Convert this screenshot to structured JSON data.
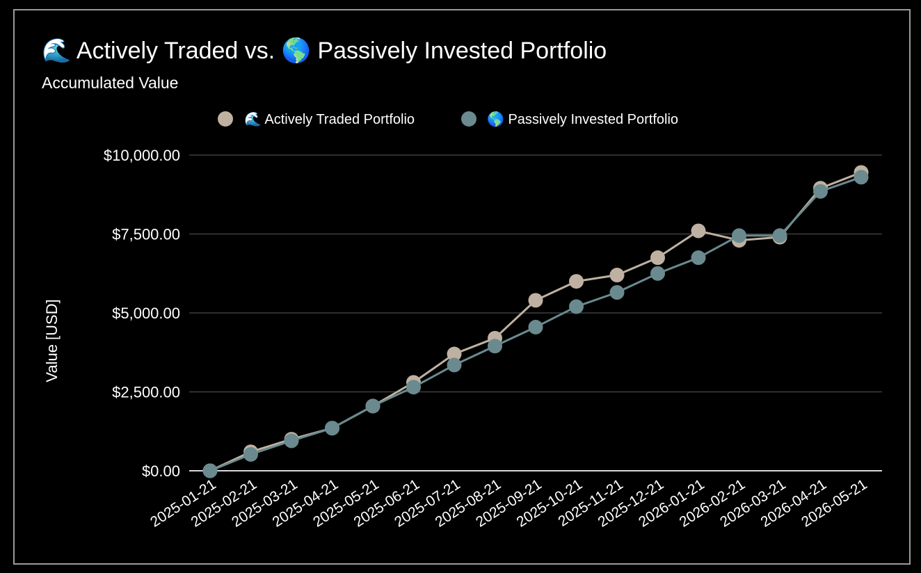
{
  "chart_data": {
    "type": "line",
    "title": "🌊 Actively Traded vs. 🌎 Passively Invested Portfolio",
    "subtitle": "Accumulated Value",
    "ylabel": "Value [USD]",
    "xlabel": "",
    "ylim": [
      0,
      10000
    ],
    "yticks": [
      0,
      2500,
      5000,
      7500,
      10000
    ],
    "ytick_labels": [
      "$0.00",
      "$2,500.00",
      "$5,000.00",
      "$7,500.00",
      "$10,000.00"
    ],
    "grid": true,
    "legend_position": "top-center",
    "categories": [
      "2025-01-21",
      "2025-02-21",
      "2025-03-21",
      "2025-04-21",
      "2025-05-21",
      "2025-06-21",
      "2025-07-21",
      "2025-08-21",
      "2025-09-21",
      "2025-10-21",
      "2025-11-21",
      "2025-12-21",
      "2026-01-21",
      "2026-02-21",
      "2026-03-21",
      "2026-04-21",
      "2026-05-21"
    ],
    "series": [
      {
        "name": "🌊 Actively Traded Portfolio",
        "color": "#bfb1a1",
        "values": [
          0,
          600,
          1000,
          1350,
          2050,
          2800,
          3700,
          4200,
          5400,
          6000,
          6200,
          6750,
          7600,
          7300,
          7400,
          8950,
          9450
        ]
      },
      {
        "name": "🌎 Passively Invested Portfolio",
        "color": "#6a8a8f",
        "values": [
          0,
          520,
          950,
          1350,
          2050,
          2650,
          3350,
          3950,
          4550,
          5200,
          5650,
          6250,
          6750,
          7450,
          7450,
          8850,
          9300
        ]
      }
    ]
  }
}
